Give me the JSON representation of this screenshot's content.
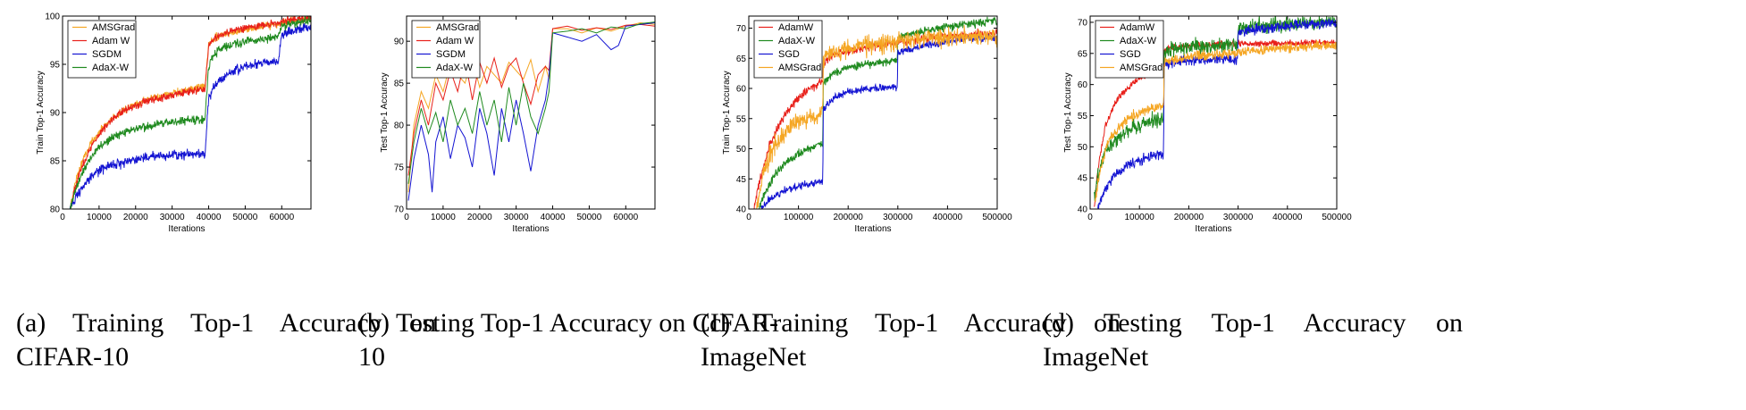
{
  "panels": [
    {
      "caption": "(a) Training Top-1 Accuracy on CIFAR-10",
      "chart_data": {
        "type": "line",
        "xlabel": "Iterations",
        "ylabel": "Train Top-1 Accuracy",
        "xlim": [
          0,
          68000
        ],
        "ylim": [
          80,
          100
        ],
        "xticks": [
          0,
          10000,
          20000,
          30000,
          40000,
          50000,
          60000
        ],
        "yticks": [
          80,
          85,
          90,
          95,
          100
        ],
        "legend_position": "top-left",
        "series": [
          {
            "name": "AMSGrad",
            "color": "#f5a623",
            "noise": 0.4,
            "x": [
              2000,
              4000,
              6000,
              8000,
              10000,
              14000,
              18000,
              22000,
              26000,
              30000,
              34000,
              38000,
              39000,
              40000,
              42000,
              46000,
              50000,
              54000,
              58000,
              60000,
              62000,
              66000,
              68000
            ],
            "y": [
              80,
              83.5,
              85.5,
              87,
              88,
              89.5,
              90.5,
              91.2,
              91.6,
              92,
              92.3,
              92.6,
              92.8,
              97,
              97.8,
              98.3,
              98.6,
              98.9,
              99.1,
              99.3,
              99.5,
              99.6,
              99.7
            ]
          },
          {
            "name": "Adam W",
            "color": "#e8201a",
            "noise": 0.4,
            "x": [
              2000,
              4000,
              6000,
              8000,
              10000,
              14000,
              18000,
              22000,
              26000,
              30000,
              34000,
              38000,
              39000,
              40000,
              42000,
              46000,
              50000,
              54000,
              58000,
              60000,
              62000,
              66000,
              68000
            ],
            "y": [
              80,
              83,
              85,
              86.5,
              87.8,
              89.5,
              90.5,
              91,
              91.5,
              91.8,
              92.1,
              92.4,
              92.5,
              97,
              97.8,
              98.4,
              98.8,
              99,
              99.2,
              99.4,
              99.6,
              99.7,
              99.8
            ]
          },
          {
            "name": "SGDM",
            "color": "#1414d2",
            "noise": 0.5,
            "x": [
              2000,
              4000,
              6000,
              8000,
              10000,
              14000,
              18000,
              22000,
              26000,
              30000,
              34000,
              38000,
              39000,
              40000,
              42000,
              46000,
              50000,
              54000,
              58000,
              59000,
              60000,
              62000,
              66000,
              68000
            ],
            "y": [
              80,
              81.5,
              82.5,
              83.3,
              84,
              84.6,
              85,
              85.3,
              85.5,
              85.6,
              85.7,
              85.8,
              85.8,
              91.5,
              93,
              94.2,
              94.8,
              95.1,
              95.3,
              95.3,
              98,
              98.4,
              98.7,
              98.9
            ]
          },
          {
            "name": "AdaX-W",
            "color": "#1f8a1f",
            "noise": 0.45,
            "x": [
              2000,
              4000,
              6000,
              8000,
              10000,
              14000,
              18000,
              22000,
              26000,
              30000,
              34000,
              38000,
              39000,
              40000,
              42000,
              46000,
              50000,
              54000,
              58000,
              59000,
              60000,
              62000,
              66000,
              68000
            ],
            "y": [
              80,
              82.5,
              84.2,
              85.5,
              86.5,
              87.5,
              88.1,
              88.5,
              88.8,
              89,
              89.2,
              89.3,
              89.4,
              95,
              96.3,
              97,
              97.4,
              97.6,
              97.8,
              97.9,
              99,
              99.2,
              99.4,
              99.5
            ]
          }
        ]
      }
    },
    {
      "caption": "(b) Testing Top-1 Accuracy on CIFAR-10",
      "chart_data": {
        "type": "line",
        "xlabel": "Iterations",
        "ylabel": "Test Top-1 Accuracy",
        "xlim": [
          0,
          68000
        ],
        "ylim": [
          70,
          93
        ],
        "xticks": [
          0,
          10000,
          20000,
          30000,
          40000,
          50000,
          60000
        ],
        "yticks": [
          70,
          75,
          80,
          85,
          90
        ],
        "legend_position": "top-left",
        "series": [
          {
            "name": "AMSGrad",
            "color": "#f5a623",
            "noise": 0,
            "x": [
              500,
              2000,
              4000,
              6000,
              8000,
              10000,
              12000,
              14000,
              16000,
              18000,
              20000,
              22000,
              24000,
              26000,
              28000,
              30000,
              32000,
              34000,
              36000,
              38000,
              39000,
              40000,
              44000,
              48000,
              52000,
              56000,
              60000,
              64000,
              68000
            ],
            "y": [
              72,
              80,
              84,
              82,
              86,
              84,
              87.5,
              86,
              85,
              88,
              84.5,
              87,
              86,
              85,
              87.5,
              86.5,
              85.5,
              87.8,
              84,
              87,
              85.5,
              91.5,
              91.5,
              91,
              91.6,
              91.2,
              91.8,
              92.2,
              92
            ]
          },
          {
            "name": "Adam W",
            "color": "#e8201a",
            "noise": 0,
            "x": [
              500,
              2000,
              4000,
              6000,
              8000,
              10000,
              12000,
              14000,
              16000,
              18000,
              20000,
              22000,
              24000,
              26000,
              28000,
              30000,
              32000,
              34000,
              36000,
              38000,
              39000,
              40000,
              44000,
              48000,
              52000,
              56000,
              60000,
              64000,
              68000
            ],
            "y": [
              74,
              79,
              83,
              80,
              85,
              83,
              86.5,
              84,
              88,
              83,
              87.5,
              85,
              88,
              84.5,
              87,
              88,
              85,
              82.5,
              86,
              87,
              86.5,
              91.5,
              91.8,
              91.3,
              91.6,
              91.4,
              91.9,
              92,
              91.8
            ]
          },
          {
            "name": "SGDM",
            "color": "#1414d2",
            "noise": 0,
            "x": [
              500,
              2000,
              4000,
              6000,
              7000,
              8000,
              10000,
              12000,
              14000,
              16000,
              18000,
              20000,
              22000,
              24000,
              26000,
              28000,
              30000,
              32000,
              34000,
              36000,
              38000,
              39000,
              40000,
              44000,
              48000,
              52000,
              56000,
              58000,
              60000,
              64000,
              68000
            ],
            "y": [
              71,
              76,
              80,
              76.5,
              72,
              78,
              81,
              76,
              80,
              78.5,
              75,
              82,
              79,
              74,
              82,
              78,
              83,
              79,
              74.5,
              80,
              83,
              86,
              91,
              90.5,
              90,
              90.8,
              89,
              89.5,
              91.8,
              92,
              92.2
            ]
          },
          {
            "name": "AdaX-W",
            "color": "#1f8a1f",
            "noise": 0,
            "x": [
              500,
              2000,
              4000,
              6000,
              8000,
              10000,
              12000,
              14000,
              16000,
              18000,
              20000,
              22000,
              24000,
              26000,
              28000,
              30000,
              32000,
              34000,
              36000,
              38000,
              39000,
              40000,
              44000,
              48000,
              52000,
              56000,
              60000,
              64000,
              68000
            ],
            "y": [
              73,
              78,
              82,
              79,
              81.5,
              78,
              83,
              80,
              82,
              79,
              84,
              80,
              83,
              78,
              84.5,
              80,
              85,
              81,
              79,
              82,
              84,
              91,
              91.2,
              91.5,
              91,
              91.7,
              91.5,
              92.1,
              92.3
            ]
          }
        ]
      }
    },
    {
      "caption": "(c) Training Top-1 Accuracy on ImageNet",
      "chart_data": {
        "type": "line",
        "xlabel": "Iterations",
        "ylabel": "Train Top-1 Accuracy",
        "xlim": [
          0,
          500000
        ],
        "ylim": [
          40,
          72
        ],
        "xticks": [
          0,
          100000,
          200000,
          300000,
          400000,
          500000
        ],
        "yticks": [
          40,
          45,
          50,
          55,
          60,
          65,
          70
        ],
        "legend_position": "top-left",
        "series": [
          {
            "name": "AdamW",
            "color": "#e8201a",
            "noise": 0.7,
            "x": [
              10000,
              20000,
              40000,
              60000,
              80000,
              100000,
              120000,
              140000,
              149000,
              150000,
              170000,
              200000,
              250000,
              299000,
              300000,
              350000,
              400000,
              450000,
              500000
            ],
            "y": [
              40,
              44,
              50,
              54,
              56.5,
              58.5,
              59.8,
              60.8,
              61.2,
              64.5,
              65.5,
              66.2,
              67,
              67.6,
              67.8,
              68.2,
              68.6,
              68.9,
              69.2
            ]
          },
          {
            "name": "AdaX-W",
            "color": "#1f8a1f",
            "noise": 0.7,
            "x": [
              20000,
              40000,
              60000,
              80000,
              100000,
              120000,
              140000,
              149000,
              150000,
              170000,
              200000,
              250000,
              299000,
              300000,
              350000,
              400000,
              450000,
              500000
            ],
            "y": [
              40,
              44,
              46.5,
              48,
              49.2,
              50,
              50.5,
              50.7,
              61,
              62.5,
              63.5,
              64.2,
              64.6,
              68.5,
              69.5,
              70.2,
              70.8,
              71.2
            ]
          },
          {
            "name": "SGD",
            "color": "#1414d2",
            "noise": 0.6,
            "x": [
              25000,
              40000,
              60000,
              80000,
              100000,
              120000,
              140000,
              149000,
              150000,
              170000,
              200000,
              250000,
              299000,
              300000,
              350000,
              400000,
              450000,
              500000
            ],
            "y": [
              40,
              41.5,
              42.5,
              43.3,
              43.8,
              44.2,
              44.5,
              44.6,
              56.5,
              58.5,
              59.5,
              60,
              60.3,
              66,
              67,
              67.8,
              68.2,
              68.5
            ]
          },
          {
            "name": "AMSGrad",
            "color": "#f5a623",
            "noise": 1.6,
            "x": [
              15000,
              30000,
              50000,
              70000,
              90000,
              110000,
              130000,
              149000,
              150000,
              170000,
              200000,
              250000,
              299000,
              300000,
              350000,
              400000,
              450000,
              500000
            ],
            "y": [
              40,
              46,
              50.5,
              52.5,
              54,
              54.8,
              55.5,
              56,
              64.8,
              65.8,
              66.5,
              67.3,
              67.8,
              68,
              68.2,
              68.4,
              68.6,
              68.8
            ]
          }
        ]
      }
    },
    {
      "caption": "(d) Testing Top-1 Accuracy on ImageNet",
      "chart_data": {
        "type": "line",
        "xlabel": "Iterations",
        "ylabel": "Test Top-1 Accuracy",
        "xlim": [
          0,
          500000
        ],
        "ylim": [
          40,
          71
        ],
        "xticks": [
          0,
          100000,
          200000,
          300000,
          400000,
          500000
        ],
        "yticks": [
          40,
          45,
          50,
          55,
          60,
          65,
          70
        ],
        "legend_position": "top-left",
        "series": [
          {
            "name": "AdamW",
            "color": "#e8201a",
            "noise": 0.5,
            "x": [
              8000,
              15000,
              30000,
              50000,
              70000,
              90000,
              110000,
              130000,
              149000,
              150000,
              170000,
              200000,
              250000,
              299000,
              300000,
              350000,
              400000,
              450000,
              500000
            ],
            "y": [
              40,
              46,
              53,
              57,
              59,
              60.5,
              61.5,
              62.2,
              62.6,
              65.5,
              66,
              66.2,
              66.4,
              66.5,
              66.6,
              66.6,
              66.6,
              66.7,
              66.7
            ]
          },
          {
            "name": "AdaX-W",
            "color": "#1f8a1f",
            "noise": 1.2,
            "x": [
              8000,
              15000,
              30000,
              50000,
              70000,
              90000,
              110000,
              130000,
              149000,
              150000,
              170000,
              200000,
              250000,
              299000,
              300000,
              350000,
              400000,
              450000,
              500000
            ],
            "y": [
              42,
              45,
              49,
              51,
              52.5,
              53.2,
              53.8,
              54.2,
              54.5,
              65,
              65.8,
              66.1,
              66.2,
              66.3,
              69,
              69.4,
              69.6,
              69.8,
              69.9
            ]
          },
          {
            "name": "SGD",
            "color": "#1414d2",
            "noise": 0.8,
            "x": [
              15000,
              30000,
              50000,
              70000,
              90000,
              110000,
              130000,
              149000,
              150000,
              170000,
              200000,
              250000,
              299000,
              300000,
              350000,
              400000,
              450000,
              500000
            ],
            "y": [
              40,
              43,
              45.5,
              46.8,
              47.6,
              48.2,
              48.7,
              49,
              63,
              63.6,
              63.8,
              64,
              64.1,
              68.5,
              69,
              69.4,
              69.7,
              69.9
            ]
          },
          {
            "name": "AMSGrad",
            "color": "#f5a623",
            "noise": 0.8,
            "x": [
              10000,
              20000,
              35000,
              50000,
              70000,
              90000,
              110000,
              130000,
              149000,
              150000,
              170000,
              200000,
              250000,
              299000,
              300000,
              350000,
              400000,
              450000,
              500000
            ],
            "y": [
              41,
              46,
              50.5,
              52.5,
              54,
              55,
              55.8,
              56.3,
              56.6,
              63.5,
              64,
              64.5,
              64.8,
              65,
              65.3,
              65.6,
              65.9,
              66.1,
              66.3
            ]
          }
        ]
      }
    }
  ]
}
